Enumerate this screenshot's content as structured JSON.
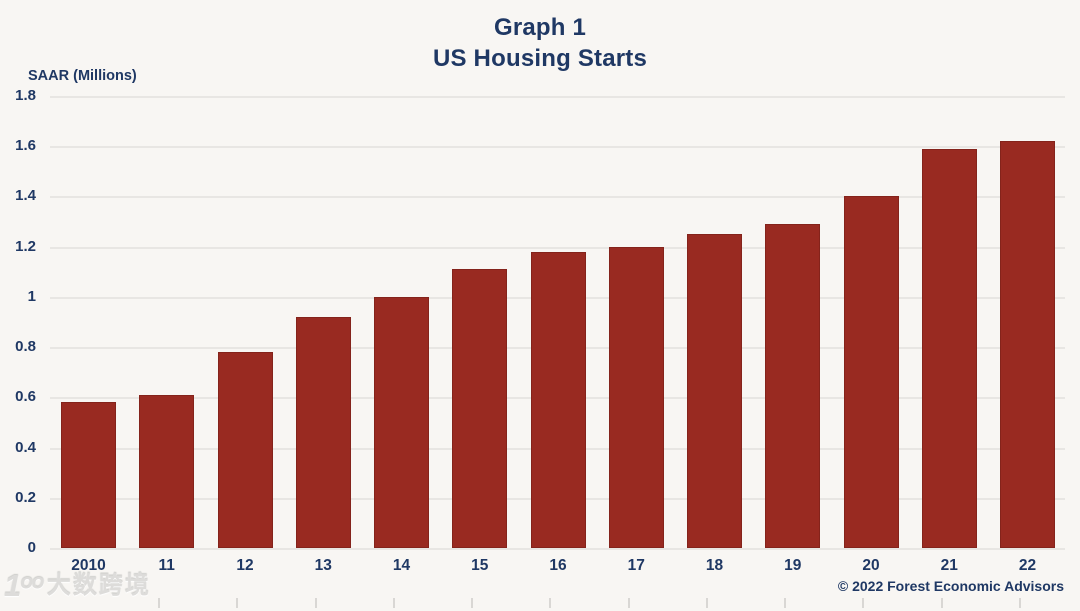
{
  "title": {
    "line1": "Graph 1",
    "line2": "US Housing Starts"
  },
  "y_axis": {
    "label": "SAAR (Millions)",
    "ticks": [
      "1.8",
      "1.6",
      "1.4",
      "1.2",
      "1",
      "0.8",
      "0.6",
      "0.4",
      "0.2",
      "0"
    ]
  },
  "footer": {
    "copyright": "© 2022 Forest Economic Advisors"
  },
  "watermark": {
    "logo": "1ᵒᵒ",
    "text": "大数跨境"
  },
  "colors": {
    "bar": "#992a21",
    "bar_edge": "#84231b",
    "text_navy": "#1f3864",
    "background": "#f8f6f3",
    "gridline": "#e8e6e3"
  },
  "chart_data": {
    "type": "bar",
    "title": "Graph 1 — US Housing Starts",
    "xlabel": "",
    "ylabel": "SAAR (Millions)",
    "categories": [
      "2010",
      "11",
      "12",
      "13",
      "14",
      "15",
      "16",
      "17",
      "18",
      "19",
      "20",
      "21",
      "22"
    ],
    "values": [
      0.58,
      0.61,
      0.78,
      0.92,
      1.0,
      1.11,
      1.18,
      1.2,
      1.25,
      1.29,
      1.4,
      1.59,
      1.62
    ],
    "ylim": [
      0,
      1.8
    ],
    "ytick_step": 0.2,
    "grid": true,
    "legend": "none",
    "bar_color": "#992a21"
  }
}
